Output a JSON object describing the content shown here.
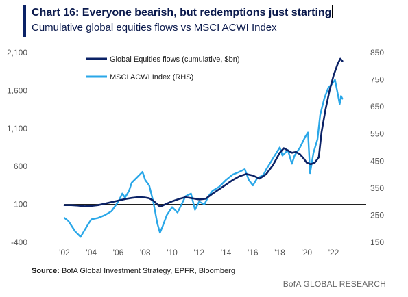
{
  "header": {
    "title": "Chart 16: Everyone bearish, but redemptions just starting",
    "subtitle": "Cumulative global equities flows vs MSCI ACWI Index"
  },
  "footer": {
    "source_label": "Source:",
    "source_text": "BofA Global Investment Strategy, EPFR, Bloomberg",
    "brand": "BofA GLOBAL RESEARCH"
  },
  "chart_data": {
    "type": "line",
    "x_tick_labels": [
      "'02",
      "'04",
      "'06",
      "'08",
      "'10",
      "'12",
      "'14",
      "'16",
      "'18",
      "'20",
      "'22"
    ],
    "x_tick_years": [
      2002,
      2004,
      2006,
      2008,
      2010,
      2012,
      2014,
      2016,
      2018,
      2020,
      2022
    ],
    "x_range": [
      2002,
      2023.4
    ],
    "y_left": {
      "ticks": [
        -400,
        100,
        600,
        1100,
        1600,
        2100
      ],
      "tick_labels": [
        "-400",
        "100",
        "600",
        "1,100",
        "1,600",
        "2,100"
      ],
      "range": [
        -400,
        2100
      ]
    },
    "y_right": {
      "ticks": [
        150,
        250,
        350,
        450,
        550,
        650,
        750,
        850
      ],
      "tick_labels": [
        "150",
        "250",
        "350",
        "450",
        "550",
        "650",
        "750",
        "850"
      ],
      "range": [
        150,
        850
      ]
    },
    "reference_line": {
      "axis": "left",
      "value": 100
    },
    "grid": false,
    "legend_position": "top-left",
    "series": [
      {
        "name": "Global Equities flows (cumulative, $bn)",
        "axis": "left",
        "color": "#0b2266",
        "points": [
          [
            2002.0,
            90
          ],
          [
            2002.5,
            90
          ],
          [
            2003.0,
            85
          ],
          [
            2003.5,
            75
          ],
          [
            2004.0,
            80
          ],
          [
            2004.5,
            90
          ],
          [
            2005.0,
            110
          ],
          [
            2005.5,
            130
          ],
          [
            2006.0,
            150
          ],
          [
            2006.5,
            170
          ],
          [
            2007.0,
            185
          ],
          [
            2007.5,
            195
          ],
          [
            2008.0,
            190
          ],
          [
            2008.3,
            180
          ],
          [
            2008.6,
            150
          ],
          [
            2008.9,
            100
          ],
          [
            2009.1,
            70
          ],
          [
            2009.3,
            85
          ],
          [
            2009.6,
            110
          ],
          [
            2010.0,
            140
          ],
          [
            2010.5,
            170
          ],
          [
            2011.0,
            195
          ],
          [
            2011.5,
            180
          ],
          [
            2012.0,
            165
          ],
          [
            2012.5,
            175
          ],
          [
            2013.0,
            240
          ],
          [
            2013.5,
            300
          ],
          [
            2014.0,
            360
          ],
          [
            2014.5,
            420
          ],
          [
            2015.0,
            470
          ],
          [
            2015.5,
            500
          ],
          [
            2016.0,
            480
          ],
          [
            2016.5,
            440
          ],
          [
            2017.0,
            500
          ],
          [
            2017.5,
            620
          ],
          [
            2018.0,
            780
          ],
          [
            2018.3,
            840
          ],
          [
            2018.6,
            810
          ],
          [
            2018.9,
            780
          ],
          [
            2019.2,
            790
          ],
          [
            2019.5,
            760
          ],
          [
            2019.8,
            700
          ],
          [
            2020.0,
            650
          ],
          [
            2020.3,
            630
          ],
          [
            2020.6,
            650
          ],
          [
            2020.9,
            720
          ],
          [
            2021.1,
            1050
          ],
          [
            2021.4,
            1350
          ],
          [
            2021.7,
            1600
          ],
          [
            2022.0,
            1800
          ],
          [
            2022.3,
            1950
          ],
          [
            2022.5,
            2020
          ],
          [
            2022.65,
            1990
          ]
        ]
      },
      {
        "name": "MSCI ACWI Index (RHS)",
        "axis": "right",
        "color": "#2aa7e8",
        "points": [
          [
            2002.0,
            240
          ],
          [
            2002.3,
            228
          ],
          [
            2002.6,
            205
          ],
          [
            2002.8,
            190
          ],
          [
            2003.0,
            180
          ],
          [
            2003.2,
            170
          ],
          [
            2003.5,
            195
          ],
          [
            2003.8,
            220
          ],
          [
            2004.0,
            235
          ],
          [
            2004.5,
            240
          ],
          [
            2005.0,
            250
          ],
          [
            2005.5,
            265
          ],
          [
            2006.0,
            300
          ],
          [
            2006.3,
            330
          ],
          [
            2006.5,
            315
          ],
          [
            2006.8,
            340
          ],
          [
            2007.0,
            370
          ],
          [
            2007.4,
            390
          ],
          [
            2007.8,
            410
          ],
          [
            2008.0,
            380
          ],
          [
            2008.3,
            360
          ],
          [
            2008.6,
            300
          ],
          [
            2008.9,
            220
          ],
          [
            2009.1,
            185
          ],
          [
            2009.3,
            210
          ],
          [
            2009.6,
            250
          ],
          [
            2010.0,
            280
          ],
          [
            2010.4,
            260
          ],
          [
            2010.8,
            300
          ],
          [
            2011.0,
            320
          ],
          [
            2011.4,
            330
          ],
          [
            2011.7,
            270
          ],
          [
            2012.0,
            300
          ],
          [
            2012.4,
            290
          ],
          [
            2012.7,
            320
          ],
          [
            2013.0,
            340
          ],
          [
            2013.5,
            355
          ],
          [
            2014.0,
            380
          ],
          [
            2014.5,
            400
          ],
          [
            2015.0,
            410
          ],
          [
            2015.4,
            420
          ],
          [
            2015.7,
            380
          ],
          [
            2016.0,
            360
          ],
          [
            2016.3,
            385
          ],
          [
            2016.8,
            400
          ],
          [
            2017.0,
            420
          ],
          [
            2017.5,
            460
          ],
          [
            2018.0,
            500
          ],
          [
            2018.2,
            470
          ],
          [
            2018.6,
            490
          ],
          [
            2018.9,
            440
          ],
          [
            2019.1,
            470
          ],
          [
            2019.5,
            500
          ],
          [
            2019.9,
            540
          ],
          [
            2020.1,
            555
          ],
          [
            2020.25,
            405
          ],
          [
            2020.5,
            480
          ],
          [
            2020.8,
            530
          ],
          [
            2021.0,
            620
          ],
          [
            2021.3,
            680
          ],
          [
            2021.6,
            720
          ],
          [
            2021.9,
            735
          ],
          [
            2022.1,
            750
          ],
          [
            2022.3,
            700
          ],
          [
            2022.45,
            660
          ],
          [
            2022.55,
            690
          ],
          [
            2022.65,
            680
          ]
        ]
      }
    ]
  }
}
